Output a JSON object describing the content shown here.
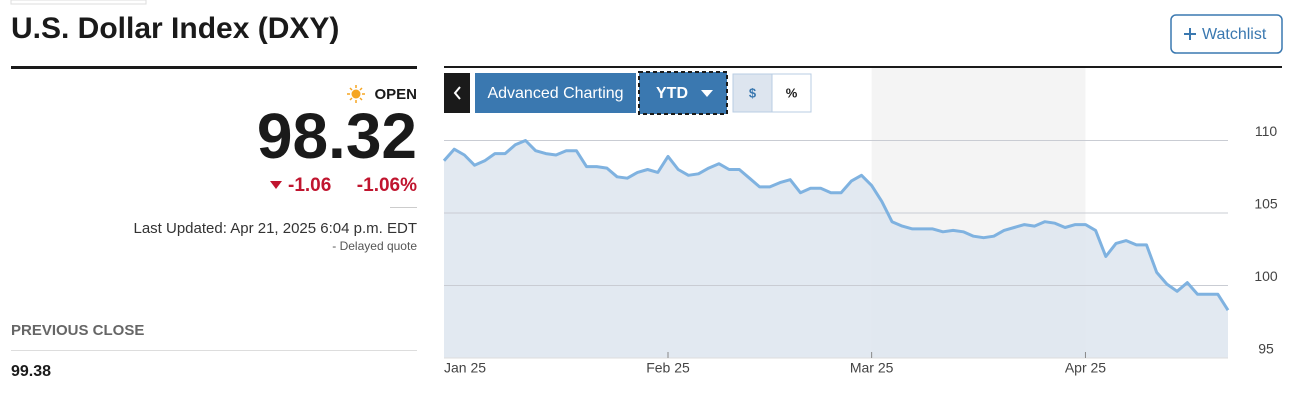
{
  "header": {
    "title": "U.S. Dollar Index (DXY)",
    "watchlist": "Watchlist"
  },
  "quote": {
    "status": "OPEN",
    "price": "98.32",
    "change": "-1.06",
    "change_pct": "-1.06%",
    "updated": "Last Updated: Apr 21, 2025 6:04 p.m. EDT",
    "delayed": "-  Delayed quote",
    "prev_close_label": "PREVIOUS CLOSE",
    "prev_close": "99.38"
  },
  "toolbar": {
    "advanced": "Advanced Charting",
    "range": "YTD",
    "dollar": "$",
    "percent": "%"
  },
  "chart_data": {
    "type": "line",
    "categories": [
      "Jan 25",
      null,
      null,
      null,
      null,
      null,
      null,
      null,
      null,
      null,
      null,
      null,
      null,
      null,
      null,
      null,
      null,
      null,
      null,
      null,
      null,
      null,
      "Feb 25",
      null,
      null,
      null,
      null,
      null,
      null,
      null,
      null,
      null,
      null,
      null,
      null,
      null,
      null,
      null,
      null,
      null,
      null,
      null,
      "Mar 25",
      null,
      null,
      null,
      null,
      null,
      null,
      null,
      null,
      null,
      null,
      null,
      null,
      null,
      null,
      null,
      null,
      null,
      null,
      null,
      null,
      "Apr 25",
      null,
      null,
      null,
      null,
      null,
      null,
      null,
      null,
      null,
      null,
      null,
      null,
      null,
      null
    ],
    "series": [
      {
        "color": "#7fb2e0",
        "values": [
          108.6,
          109.4,
          109.0,
          108.3,
          108.6,
          109.1,
          109.1,
          109.7,
          110.0,
          109.3,
          109.1,
          109.0,
          109.3,
          109.3,
          108.2,
          108.2,
          108.1,
          107.5,
          107.4,
          107.8,
          108.0,
          107.8,
          108.9,
          108.0,
          107.6,
          107.7,
          108.1,
          108.4,
          108.0,
          108.0,
          107.4,
          106.8,
          106.8,
          107.1,
          107.3,
          106.4,
          106.7,
          106.7,
          106.4,
          106.4,
          107.2,
          107.6,
          106.9,
          105.8,
          104.4,
          104.1,
          103.9,
          103.9,
          103.9,
          103.7,
          103.8,
          103.7,
          103.4,
          103.3,
          103.4,
          103.8,
          104.0,
          104.2,
          104.1,
          104.4,
          104.3,
          104.0,
          104.2,
          104.2,
          103.8,
          102.0,
          102.9,
          103.1,
          102.8,
          102.8,
          100.9,
          100.1,
          99.6,
          100.2,
          99.4,
          99.4,
          99.4,
          98.3
        ]
      }
    ],
    "ylim": [
      95,
      115
    ],
    "yticks": [
      95,
      100,
      105,
      110
    ],
    "grid": true,
    "area_color": "#dde5ef"
  }
}
